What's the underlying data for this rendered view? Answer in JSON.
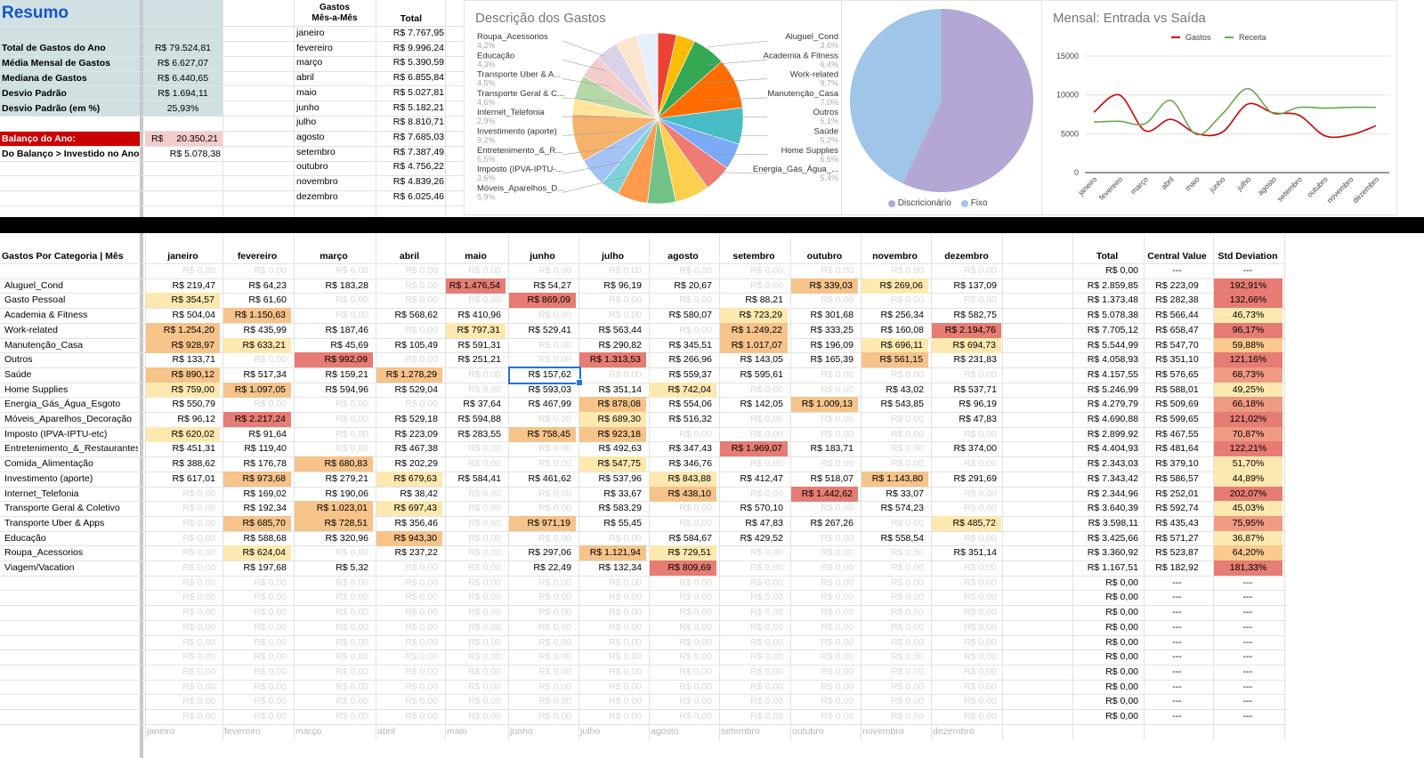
{
  "resumo": {
    "title": "Resumo",
    "stats": [
      {
        "label": "Total de Gastos do Ano",
        "value": "R$ 79.524,81"
      },
      {
        "label": "Média Mensal de Gastos",
        "value": "R$ 6.627,07"
      },
      {
        "label": "Mediana de Gastos",
        "value": "R$ 6.440,65"
      },
      {
        "label": "Desvio Padrão",
        "value": "R$ 1.694,11"
      },
      {
        "label": "Desvio Padrão (em %)",
        "value": "25,93%"
      }
    ],
    "balanco_label": "Balanço do Ano:",
    "balanco_currency": "R$",
    "balanco_value": "20.350,21",
    "investido_label": "Do Balanço > Investido no Ano:",
    "investido_value": "R$ 5.078,38"
  },
  "gastos_mes": {
    "header_line1": "Gastos",
    "header_line2": "Mês-a-Mês",
    "total_header": "Total",
    "rows": [
      {
        "mes": "janeiro",
        "total": "R$ 7.767,95"
      },
      {
        "mes": "fevereiro",
        "total": "R$ 9.996,24"
      },
      {
        "mes": "março",
        "total": "R$ 5.390,59"
      },
      {
        "mes": "abril",
        "total": "R$ 6.855,84"
      },
      {
        "mes": "maio",
        "total": "R$ 5.027,81"
      },
      {
        "mes": "junho",
        "total": "R$ 5.182,21"
      },
      {
        "mes": "julho",
        "total": "R$ 8.810,71"
      },
      {
        "mes": "agosto",
        "total": "R$ 7.685,03"
      },
      {
        "mes": "setembro",
        "total": "R$ 7.387,49"
      },
      {
        "mes": "outubro",
        "total": "R$ 4.756,22"
      },
      {
        "mes": "novembro",
        "total": "R$ 4.839,26"
      },
      {
        "mes": "dezembro",
        "total": "R$ 6.025,46"
      }
    ]
  },
  "pie1": {
    "title": "Descrição dos Gastos",
    "left_labels": [
      {
        "name": "Roupa_Acessorios",
        "pct": "4,2%"
      },
      {
        "name": "Educação",
        "pct": "4,3%"
      },
      {
        "name": "Transporte Uber & A...",
        "pct": "4,5%"
      },
      {
        "name": "Transporte Geral & C...",
        "pct": "4,6%"
      },
      {
        "name": "Internet_Telefonia",
        "pct": "2,9%"
      },
      {
        "name": "Investimento (aporte)",
        "pct": "9,2%"
      },
      {
        "name": "Entretenimento_&_R...",
        "pct": "5,5%"
      },
      {
        "name": "Imposto (IPVA-IPTU-...",
        "pct": "3,6%"
      },
      {
        "name": "Móveis_Aparelhos_D...",
        "pct": "5,9%"
      }
    ],
    "right_labels": [
      {
        "name": "Aluguel_Cond",
        "pct": "3,6%"
      },
      {
        "name": "Academia & Fitness",
        "pct": "6,4%"
      },
      {
        "name": "Work-related",
        "pct": "9,7%"
      },
      {
        "name": "Manutenção_Casa",
        "pct": "7,0%"
      },
      {
        "name": "Outros",
        "pct": "5,1%"
      },
      {
        "name": "Saúde",
        "pct": "5,2%"
      },
      {
        "name": "Home Supplies",
        "pct": "6,6%"
      },
      {
        "name": "Energia_Gás_Água_...",
        "pct": "5,4%"
      }
    ]
  },
  "pie2": {
    "legend": [
      "Discricionário",
      "Fixo"
    ],
    "colors": [
      "#b4a7d6",
      "#9fc5e8"
    ],
    "values": [
      0.57,
      0.43
    ]
  },
  "chart_data": {
    "type": "line",
    "title": "Mensal: Entrada vs Saída",
    "legend_position": "top",
    "categories": [
      "janeiro",
      "fevereiro",
      "março",
      "abril",
      "maio",
      "junho",
      "julho",
      "agosto",
      "setembro",
      "outubro",
      "novembro",
      "dezembro"
    ],
    "y_ticks": [
      "0",
      "5000",
      "10000",
      "15000"
    ],
    "ylim": [
      0,
      16000
    ],
    "series": [
      {
        "name": "Gastos",
        "color": "#cc0000",
        "values": [
          7768,
          9996,
          5391,
          6856,
          5028,
          5182,
          8811,
          7685,
          7387,
          4756,
          4839,
          6025
        ]
      },
      {
        "name": "Receita",
        "color": "#6aa84f",
        "values": [
          6500,
          6600,
          6300,
          9300,
          4900,
          7500,
          10800,
          7600,
          8400,
          8300,
          8400,
          8400
        ]
      }
    ]
  },
  "categorias": {
    "header": "Gastos Por Categoria | Mês",
    "months": [
      "janeiro",
      "fevereiro",
      "março",
      "abril",
      "maio",
      "junho",
      "julho",
      "agosto",
      "setembro",
      "outubro",
      "novembro",
      "dezembro"
    ],
    "total_header": "Total",
    "central_header": "Central Value",
    "std_header": "Std Deviation",
    "zero_value": "R$ 0,00",
    "dash": "---",
    "rows": [
      {
        "name": "Aluguel_Cond",
        "vals": [
          "R$ 219,47",
          "R$ 64,23",
          "R$ 183,28",
          "",
          "R$ 1.476,54",
          "R$ 54,27",
          "R$ 96,19",
          "R$ 20,67",
          "",
          "R$ 339,03",
          "R$ 269,06",
          "R$ 137,09"
        ],
        "total": "R$ 2.859,85",
        "central": "R$ 223,09",
        "std": "192,91%"
      },
      {
        "name": "Gasto Pessoal",
        "vals": [
          "R$ 354,57",
          "R$ 61,60",
          "",
          "",
          "",
          "R$ 869,09",
          "",
          "",
          "R$ 88,21",
          "",
          "",
          ""
        ],
        "total": "R$ 1.373,48",
        "central": "R$ 282,38",
        "std": "132,66%"
      },
      {
        "name": "Academia & Fitness",
        "vals": [
          "R$ 504,04",
          "R$ 1.150,63",
          "",
          "R$ 568,62",
          "R$ 410,96",
          "",
          "",
          "R$ 580,07",
          "R$ 723,29",
          "R$ 301,68",
          "R$ 256,34",
          "R$ 582,75"
        ],
        "total": "R$ 5.078,38",
        "central": "R$ 566,44",
        "std": "46,73%"
      },
      {
        "name": "Work-related",
        "vals": [
          "R$ 1.254,20",
          "R$ 435,99",
          "R$ 187,46",
          "",
          "R$ 797,31",
          "R$ 529,41",
          "R$ 563,44",
          "",
          "R$ 1.249,22",
          "R$ 333,25",
          "R$ 160,08",
          "R$ 2.194,76"
        ],
        "total": "R$ 7.705,12",
        "central": "R$ 658,47",
        "std": "96,17%"
      },
      {
        "name": "Manutenção_Casa",
        "vals": [
          "R$ 928,97",
          "R$ 633,21",
          "R$ 45,69",
          "R$ 105,49",
          "R$ 591,31",
          "",
          "R$ 290,82",
          "R$ 345,51",
          "R$ 1.017,07",
          "R$ 196,09",
          "R$ 696,11",
          "R$ 694,73"
        ],
        "total": "R$ 5.544,99",
        "central": "R$ 547,70",
        "std": "59,88%"
      },
      {
        "name": "Outros",
        "vals": [
          "R$ 133,71",
          "",
          "R$ 992,09",
          "",
          "R$ 251,21",
          "",
          "R$ 1.313,53",
          "R$ 266,96",
          "R$ 143,05",
          "R$ 165,39",
          "R$ 561,15",
          "R$ 231,83"
        ],
        "total": "R$ 4.058,93",
        "central": "R$ 351,10",
        "std": "121,16%"
      },
      {
        "name": "Saúde",
        "vals": [
          "R$ 890,12",
          "R$ 517,34",
          "R$ 159,21",
          "R$ 1.278,29",
          "",
          "R$ 157,62",
          "",
          "R$ 559,37",
          "R$ 595,61",
          "",
          "",
          ""
        ],
        "total": "R$ 4.157,55",
        "central": "R$ 576,65",
        "std": "68,73%"
      },
      {
        "name": "Home Supplies",
        "vals": [
          "R$ 759,00",
          "R$ 1.097,05",
          "R$ 594,96",
          "R$ 529,04",
          "",
          "R$ 593,03",
          "R$ 351,14",
          "R$ 742,04",
          "",
          "",
          "R$ 43,02",
          "R$ 537,71"
        ],
        "total": "R$ 5.246,99",
        "central": "R$ 588,01",
        "std": "49,25%"
      },
      {
        "name": "Energia_Gás_Água_Esgoto",
        "vals": [
          "R$ 550,79",
          "",
          "",
          "",
          "R$ 37,64",
          "R$ 467,99",
          "R$ 878,08",
          "R$ 554,06",
          "R$ 142,05",
          "R$ 1.009,13",
          "R$ 543,85",
          "R$ 96,19"
        ],
        "total": "R$ 4.279,79",
        "central": "R$ 509,69",
        "std": "66,18%"
      },
      {
        "name": "Móveis_Aparelhos_Decoração",
        "vals": [
          "R$ 96,12",
          "R$ 2.217,24",
          "",
          "R$ 529,18",
          "R$ 594,88",
          "",
          "R$ 689,30",
          "R$ 516,32",
          "",
          "",
          "",
          "R$ 47,83"
        ],
        "total": "R$ 4.690,88",
        "central": "R$ 599,65",
        "std": "121,02%"
      },
      {
        "name": "Imposto (IPVA-IPTU-etc)",
        "vals": [
          "R$ 620,02",
          "R$ 91,64",
          "",
          "R$ 223,09",
          "R$ 283,55",
          "R$ 758,45",
          "R$ 923,18",
          "",
          "",
          "",
          "",
          ""
        ],
        "total": "R$ 2.899,92",
        "central": "R$ 467,55",
        "std": "70,87%"
      },
      {
        "name": "Entretenimento_&_Restaurantes",
        "vals": [
          "R$ 451,31",
          "R$ 119,40",
          "",
          "R$ 467,38",
          "",
          "",
          "R$ 492,63",
          "R$ 347,43",
          "R$ 1.969,07",
          "R$ 183,71",
          "",
          "R$ 374,00"
        ],
        "total": "R$ 4.404,93",
        "central": "R$ 481,64",
        "std": "122,21%"
      },
      {
        "name": "Comida_Alimentação",
        "vals": [
          "R$ 388,62",
          "R$ 176,78",
          "R$ 680,83",
          "R$ 202,29",
          "",
          "",
          "R$ 547,75",
          "R$ 346,76",
          "",
          "",
          "",
          ""
        ],
        "total": "R$ 2.343,03",
        "central": "R$ 379,10",
        "std": "51,70%"
      },
      {
        "name": "Investimento (aporte)",
        "vals": [
          "R$ 617,01",
          "R$ 973,68",
          "R$ 279,21",
          "R$ 679,63",
          "R$ 584,41",
          "R$ 461,62",
          "R$ 537,96",
          "R$ 843,88",
          "R$ 412,47",
          "R$ 518,07",
          "R$ 1.143,80",
          "R$ 291,69"
        ],
        "total": "R$ 7.343,42",
        "central": "R$ 586,57",
        "std": "44,89%"
      },
      {
        "name": "Internet_Telefonia",
        "vals": [
          "",
          "R$ 169,02",
          "R$ 190,06",
          "R$ 38,42",
          "",
          "",
          "R$ 33,67",
          "R$ 438,10",
          "",
          "R$ 1.442,62",
          "R$ 33,07",
          ""
        ],
        "total": "R$ 2.344,96",
        "central": "R$ 252,01",
        "std": "202,07%"
      },
      {
        "name": "Transporte Geral & Coletivo",
        "vals": [
          "",
          "R$ 192,34",
          "R$ 1.023,01",
          "R$ 697,43",
          "",
          "",
          "R$ 583,29",
          "",
          "R$ 570,10",
          "",
          "R$ 574,23",
          ""
        ],
        "total": "R$ 3.640,39",
        "central": "R$ 592,74",
        "std": "45,03%"
      },
      {
        "name": "Transporte Uber & Apps",
        "vals": [
          "",
          "R$ 685,70",
          "R$ 728,51",
          "R$ 356,46",
          "",
          "R$ 971,19",
          "R$ 55,45",
          "",
          "R$ 47,83",
          "R$ 267,26",
          "",
          "R$ 485,72"
        ],
        "total": "R$ 3.598,11",
        "central": "R$ 435,43",
        "std": "75,95%"
      },
      {
        "name": "Educação",
        "vals": [
          "",
          "R$ 588,68",
          "R$ 320,96",
          "R$ 943,30",
          "",
          "",
          "",
          "R$ 584,67",
          "R$ 429,52",
          "",
          "R$ 558,54",
          ""
        ],
        "total": "R$ 3.425,66",
        "central": "R$ 571,27",
        "std": "36,87%"
      },
      {
        "name": "Roupa_Acessorios",
        "vals": [
          "",
          "R$ 624,04",
          "",
          "R$ 237,22",
          "",
          "R$ 297,06",
          "R$ 1.121,94",
          "R$ 729,51",
          "",
          "",
          "",
          "R$ 351,14"
        ],
        "total": "R$ 3.360,92",
        "central": "R$ 523,87",
        "std": "64,20%"
      },
      {
        "name": "Viagem/Vacation",
        "vals": [
          "",
          "R$ 197,68",
          "R$ 5,32",
          "",
          "",
          "R$ 22,49",
          "R$ 132,34",
          "R$ 809,69",
          "",
          "",
          "",
          ""
        ],
        "total": "R$ 1.167,51",
        "central": "R$ 182,92",
        "std": "181,33%"
      }
    ]
  }
}
